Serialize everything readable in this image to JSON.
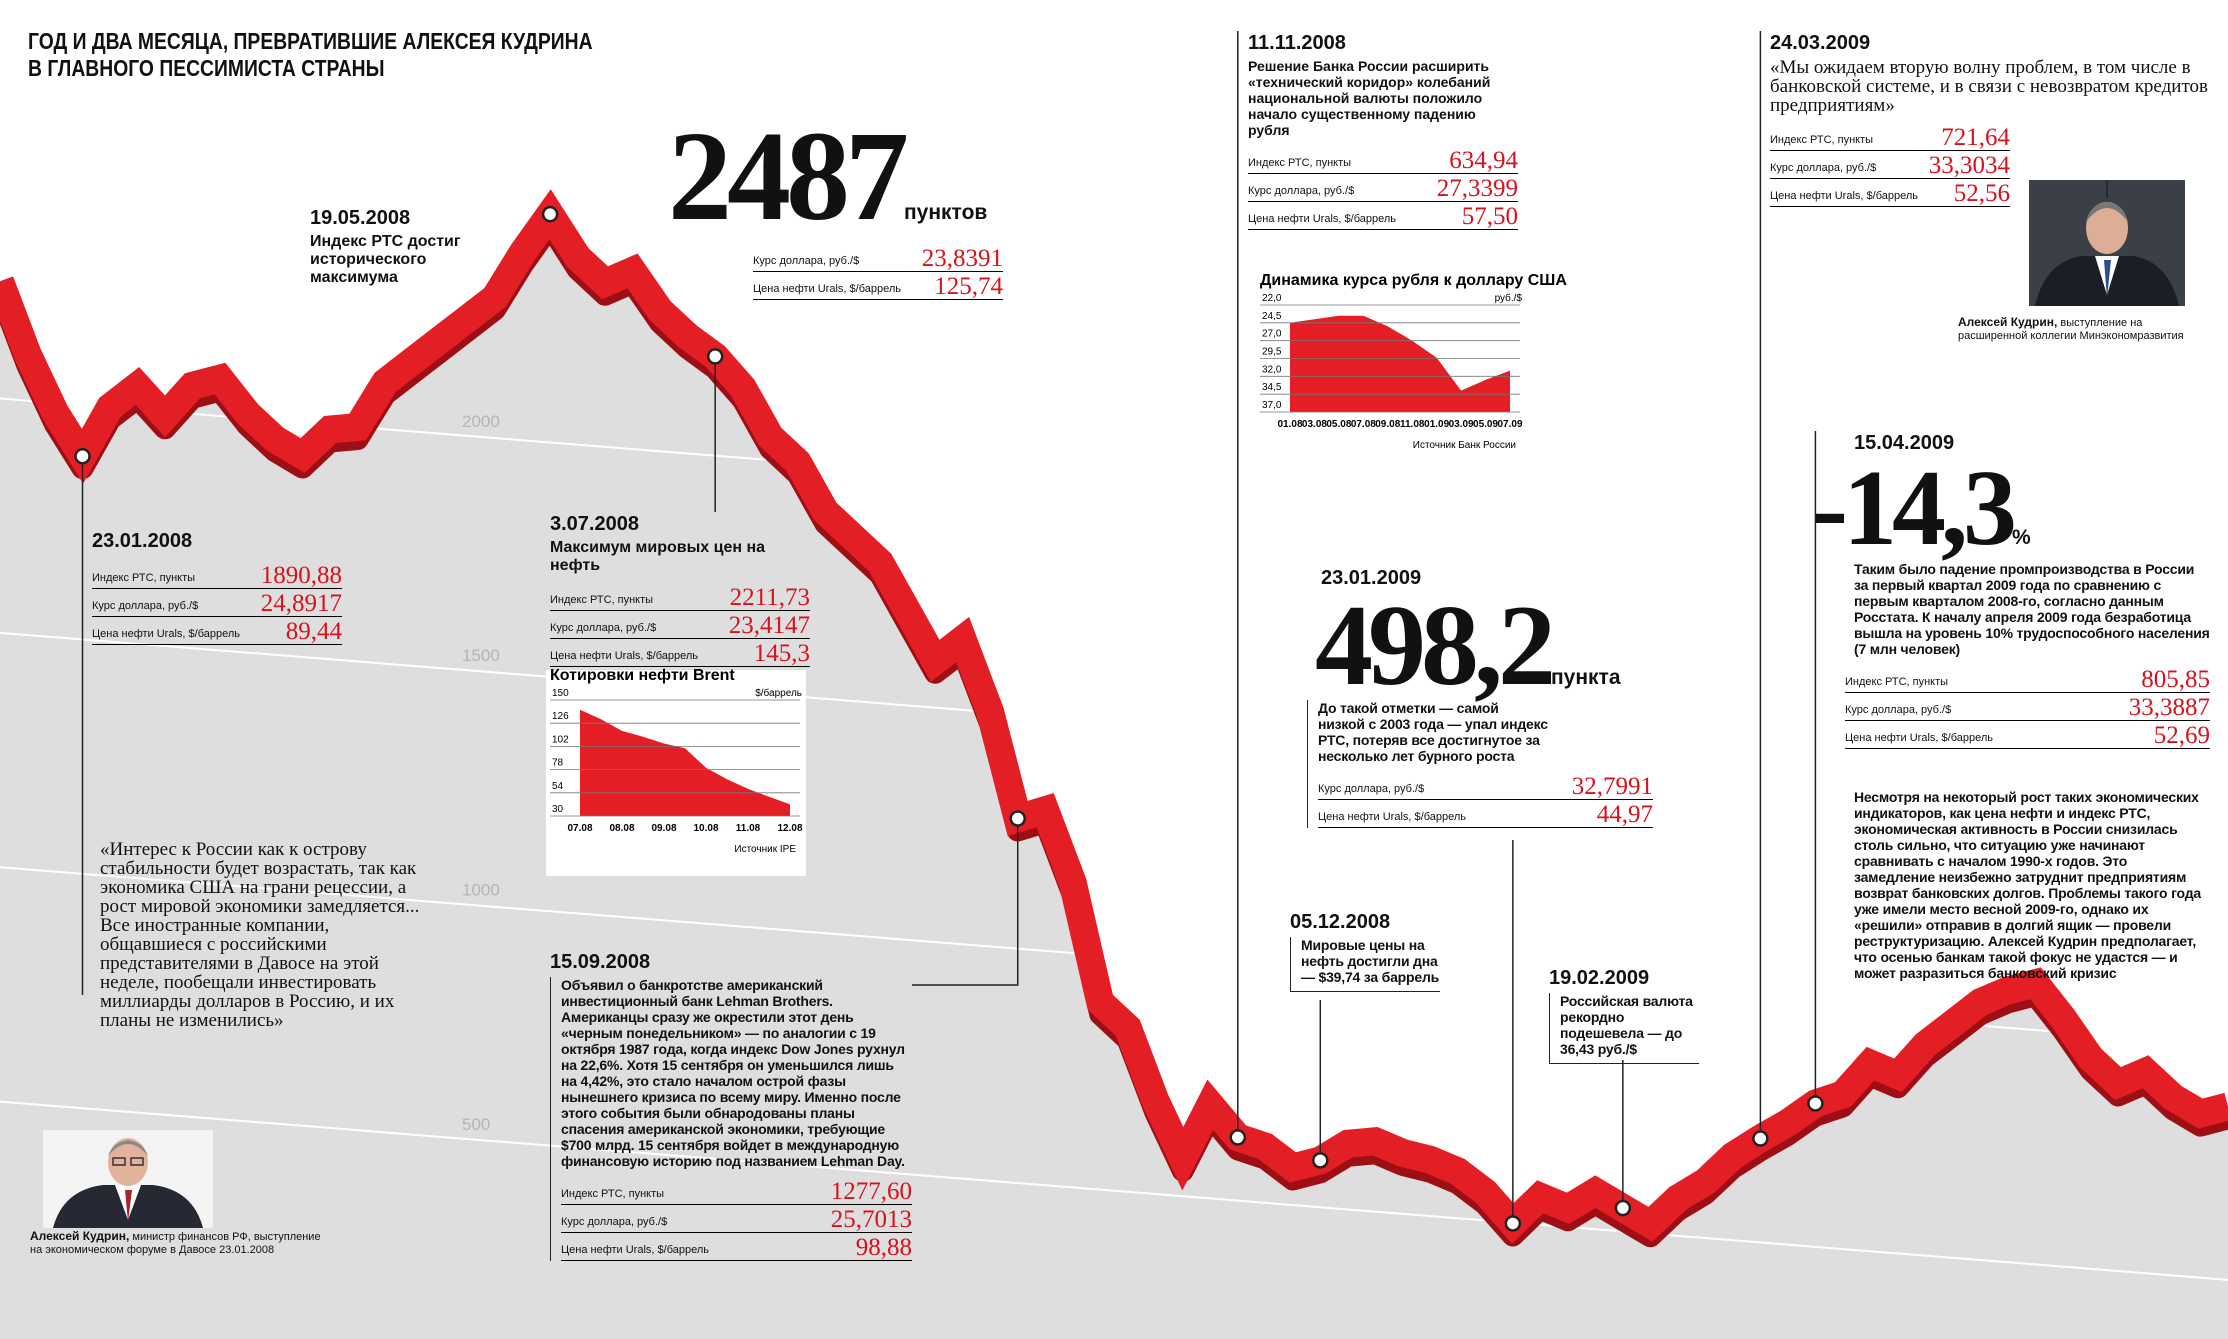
{
  "title": [
    "ГОД И ДВА МЕСЯЦА, ПРЕВРАТИВШИЕ АЛЕКСЕЯ КУДРИНА",
    "В ГЛАВНОГО ПЕССИМИСТА СТРАНЫ"
  ],
  "chart_data": [
    {
      "type": "line",
      "color": "#e31e24",
      "grid": true,
      "ylim": [
        0,
        2850
      ],
      "yticks": [
        500,
        1000,
        1500,
        2000
      ],
      "values": [
        2250,
        2100,
        1980,
        1890.88,
        2000,
        2050,
        1990,
        2060,
        2080,
        2010,
        1960,
        1930,
        1990,
        2000,
        2100,
        2150,
        2200,
        2250,
        2300,
        2400,
        2487,
        2400,
        2350,
        2380,
        2300,
        2250,
        2211.73,
        2150,
        2050,
        2000,
        1900,
        1850,
        1800,
        1700,
        1600,
        1650,
        1500,
        1277.6,
        1300,
        1150,
        900,
        850,
        700,
        580,
        700,
        634.94,
        620,
        580,
        600,
        640,
        650,
        630,
        620,
        600,
        560,
        498.2,
        560,
        540,
        580,
        550,
        520,
        580,
        620,
        680,
        721.64,
        760,
        805.85,
        830,
        900,
        880,
        950,
        1000,
        1050,
        1080,
        1100,
        1030,
        950,
        900,
        930,
        880,
        850,
        870
      ]
    },
    {
      "type": "area",
      "title": "Котировки нефти Brent",
      "y_label": "$/баррель",
      "source": "Источник IPE",
      "color": "#e31e24",
      "categories": [
        "07.08",
        null,
        "08.08",
        null,
        "09.08",
        null,
        "10.08",
        null,
        "11.08",
        null,
        "12.08"
      ],
      "values": [
        140,
        130,
        118,
        112,
        105,
        100,
        80,
        68,
        58,
        50,
        42
      ],
      "ylim": [
        30,
        150
      ],
      "yticks": [
        30,
        54,
        78,
        102,
        126,
        150
      ]
    },
    {
      "type": "area",
      "title": "Динамика курса рубля к доллару США",
      "y_label": "руб./$",
      "source": "Источник Банк России",
      "color": "#e31e24",
      "categories": [
        "01.08",
        "03.08",
        "05.08",
        "07.08",
        "09.08",
        "11.08",
        "01.09",
        "03.09",
        "05.09",
        "07.09"
      ],
      "values": [
        24.5,
        24.0,
        23.5,
        23.5,
        25.0,
        27.0,
        29.4,
        34.0,
        32.5,
        31.2
      ],
      "ylim": [
        37,
        22
      ],
      "yticks": [
        {
          "value": 37,
          "label": "37,0"
        },
        {
          "value": 34.5,
          "label": "34,5"
        },
        {
          "value": 32,
          "label": "32,0"
        },
        {
          "value": 29.5,
          "label": "29,5"
        },
        {
          "value": 27,
          "label": "27,0"
        },
        {
          "value": 24.5,
          "label": "24,5"
        },
        {
          "value": 22,
          "label": "22,0"
        }
      ]
    }
  ],
  "annotations": [
    {
      "date": "23.01.2008",
      "rows": [
        {
          "label": "Индекс РТС, пункты",
          "value": "1890,88"
        },
        {
          "label": "Курс доллара, руб./$",
          "value": "24,8917"
        },
        {
          "label": "Цена нефти Urals, $/баррель",
          "value": "89,44"
        }
      ],
      "quote": "«Интерес к России как к острову стабильности будет возрастать, так как экономика США на грани рецессии, а рост мировой экономики замедляется... Все иностранные компании, общавшиеся с российскими представителями в Давосе на этой неделе, пообещали инвестировать миллиарды долларов в Россию, и их планы не изменились»",
      "photo_name": "Алексей Кудрин,",
      "photo_role": "министр финансов РФ, выступление на экономическом форуме в Давосе 23.01.2008"
    },
    {
      "date": "19.05.2008",
      "heading": "Индекс РТС достиг исторического максимума",
      "big": "2487",
      "big_unit": "пунктов",
      "rows": [
        {
          "label": "Курс доллара, руб./$",
          "value": "23,8391"
        },
        {
          "label": "Цена нефти Urals, $/баррель",
          "value": "125,74"
        }
      ]
    },
    {
      "date": "3.07.2008",
      "heading": "Максимум мировых цен на нефть",
      "rows": [
        {
          "label": "Индекс РТС, пункты",
          "value": "2211,73"
        },
        {
          "label": "Курс доллара, руб./$",
          "value": "23,4147"
        },
        {
          "label": "Цена нефти Urals, $/баррель",
          "value": "145,3"
        }
      ]
    },
    {
      "date": "15.09.2008",
      "text": "Объявил о банкротстве американский инвестиционный банк Lehman Brothers. Американцы сразу же окрестили этот день «черным понедельником» — по аналогии с 19 октября 1987 года, когда индекс Dow Jones рухнул на 22,6%. Хотя 15 сентября он уменьшился лишь на 4,42%, это стало началом острой фазы нынешнего кризиса по всему миру. Именно после этого события были обнародованы планы спасения американской экономики, требующие $700 млрд. 15 сентября войдет в международную финансовую историю под названием Lehman Day.",
      "rows": [
        {
          "label": "Индекс РТС, пункты",
          "value": "1277,60"
        },
        {
          "label": "Курс доллара, руб./$",
          "value": "25,7013"
        },
        {
          "label": "Цена нефти Urals, $/баррель",
          "value": "98,88"
        }
      ]
    },
    {
      "date": "11.11.2008",
      "heading": "Решение Банка России расширить «технический коридор» колебаний национальной валюты положило начало существенному падению рубля",
      "rows": [
        {
          "label": "Индекс РТС, пункты",
          "value": "634,94"
        },
        {
          "label": "Курс доллара, руб./$",
          "value": "27,3399"
        },
        {
          "label": "Цена нефти Urals, $/баррель",
          "value": "57,50"
        }
      ]
    },
    {
      "date": "05.12.2008",
      "text": "Мировые цены на нефть достигли дна — $39,74 за баррель"
    },
    {
      "date": "23.01.2009",
      "big": "498,2",
      "big_unit": "пункта",
      "text": "До такой отметки — самой низкой с 2003 года — упал индекс РТС, потеряв все достигнутое за несколько лет бурного роста",
      "rows": [
        {
          "label": "Курс доллара, руб./$",
          "value": "32,7991"
        },
        {
          "label": "Цена нефти Urals, $/баррель",
          "value": "44,97"
        }
      ]
    },
    {
      "date": "19.02.2009",
      "text": "Российская валюта рекордно подешевела — до 36,43 руб./$"
    },
    {
      "date": "24.03.2009",
      "quote": "«Мы ожидаем вторую волну проблем, в том числе в банковской системе, и в связи с невозвратом кредитов предприятиям»",
      "rows": [
        {
          "label": "Индекс РТС, пункты",
          "value": "721,64"
        },
        {
          "label": "Курс доллара, руб./$",
          "value": "33,3034"
        },
        {
          "label": "Цена нефти Urals, $/баррель",
          "value": "52,56"
        }
      ],
      "photo_name": "Алексей Кудрин,",
      "photo_role": "выступление на расширенной коллегии Минэкономразвития"
    },
    {
      "date": "15.04.2009",
      "big": "-14,3",
      "big_unit": "%",
      "text": "Таким было падение промпроизводства в России за первый квартал 2009 года по сравнению с первым кварталом 2008-го, согласно данным Росстата. К началу апреля 2009 года безработица вышла на уровень 10% трудоспособного населения (7 млн человек)",
      "rows": [
        {
          "label": "Индекс РТС, пункты",
          "value": "805,85"
        },
        {
          "label": "Курс доллара, руб./$",
          "value": "33,3887"
        },
        {
          "label": "Цена нефти Urals, $/баррель",
          "value": "52,69"
        }
      ],
      "text2": "Несмотря на некоторый рост таких экономических индикаторов, как цена нефти и индекс РТС, экономическая активность в России снизилась столь сильно, что ситуацию уже начинают сравнивать с началом 1990-х годов. Это замедление неизбежно затруднит предприятиям возврат банковских долгов. Проблемы такого года уже имели место весной 2009-го, однако их «решили» отправив в долгий ящик — провели реструктуризацию. Алексей Кудрин предполагает, что осенью банкам такой фокус не удастся — и может разразиться банковский кризис"
    }
  ]
}
